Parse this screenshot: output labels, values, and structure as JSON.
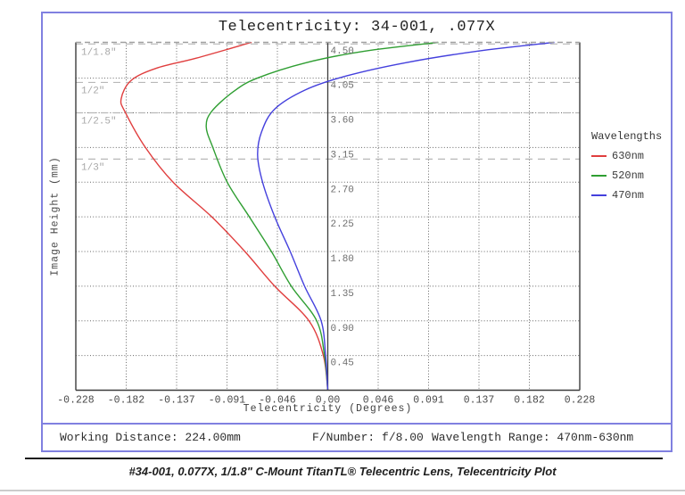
{
  "title": "Telecentricity: 34-001, .077X",
  "chart_data": {
    "type": "line",
    "title": "Telecentricity: 34-001, .077X",
    "xlabel": "Telecentricity (Degrees)",
    "ylabel": "Image Height (mm)",
    "xlim": [
      -0.228,
      0.228
    ],
    "ylim": [
      0,
      4.515
    ],
    "grid": "dotted",
    "legend_position": "right-outside",
    "legend_title": "Wavelengths",
    "x_tick_labels": [
      "-0.228",
      "-0.182",
      "-0.137",
      "-0.091",
      "-0.046",
      "0.00",
      "0.046",
      "0.091",
      "0.137",
      "0.182",
      "0.228"
    ],
    "y_tick_labels": [
      "4.50",
      "4.05",
      "3.60",
      "3.15",
      "2.70",
      "2.25",
      "1.80",
      "1.35",
      "0.90",
      "0.45"
    ],
    "y_tick_values": [
      4.5,
      4.05,
      3.6,
      3.15,
      2.7,
      2.25,
      1.8,
      1.35,
      0.9,
      0.45
    ],
    "sensor_format_lines": [
      {
        "label": "1/1.8\"",
        "mm": 4.494
      },
      {
        "label": "1/2\"",
        "mm": 3.995
      },
      {
        "label": "1/2.5\"",
        "mm": 3.6
      },
      {
        "label": "1/3\"",
        "mm": 3.0
      }
    ],
    "series": [
      {
        "name": "630nm",
        "color": "#e03e3e",
        "points": [
          [
            0,
            0
          ],
          [
            -0.004,
            0.45
          ],
          [
            -0.017,
            0.9
          ],
          [
            -0.048,
            1.35
          ],
          [
            -0.075,
            1.8
          ],
          [
            -0.105,
            2.25
          ],
          [
            -0.14,
            2.7
          ],
          [
            -0.165,
            3.15
          ],
          [
            -0.183,
            3.6
          ],
          [
            -0.187,
            3.78
          ],
          [
            -0.178,
            4.02
          ],
          [
            -0.155,
            4.18
          ],
          [
            -0.119,
            4.31
          ],
          [
            -0.069,
            4.515
          ]
        ]
      },
      {
        "name": "520nm",
        "color": "#2f9e32",
        "points": [
          [
            0,
            0
          ],
          [
            -0.003,
            0.45
          ],
          [
            -0.01,
            0.9
          ],
          [
            -0.033,
            1.35
          ],
          [
            -0.051,
            1.8
          ],
          [
            -0.071,
            2.25
          ],
          [
            -0.091,
            2.7
          ],
          [
            -0.104,
            3.15
          ],
          [
            -0.11,
            3.42
          ],
          [
            -0.105,
            3.62
          ],
          [
            -0.085,
            3.88
          ],
          [
            -0.064,
            4.05
          ],
          [
            -0.02,
            4.25
          ],
          [
            0.033,
            4.4
          ],
          [
            0.1,
            4.515
          ]
        ]
      },
      {
        "name": "470nm",
        "color": "#4440dd",
        "points": [
          [
            0,
            0
          ],
          [
            -0.002,
            0.45
          ],
          [
            -0.006,
            0.9
          ],
          [
            -0.021,
            1.35
          ],
          [
            -0.034,
            1.8
          ],
          [
            -0.048,
            2.25
          ],
          [
            -0.059,
            2.7
          ],
          [
            -0.0635,
            3.05
          ],
          [
            -0.06,
            3.35
          ],
          [
            -0.048,
            3.65
          ],
          [
            -0.02,
            3.9
          ],
          [
            0.017,
            4.08
          ],
          [
            0.07,
            4.25
          ],
          [
            0.135,
            4.4
          ],
          [
            0.205,
            4.515
          ]
        ]
      }
    ]
  },
  "footer": {
    "working_distance": "Working Distance: 224.00mm",
    "f_number": "F/Number: f/8.00",
    "wavelength_range": "Wavelength Range: 470nm-630nm"
  },
  "caption": "#34-001, 0.077X, 1/1.8\" C-Mount TitanTL® Telecentric Lens, Telecentricity Plot",
  "colors": {
    "box_border": "#8080e0",
    "plot_border": "#3c3c3c",
    "grid_dotted": "#666666",
    "format_dashed": "#b8b8b8",
    "top_border_dashed": "#a0a0a0"
  }
}
